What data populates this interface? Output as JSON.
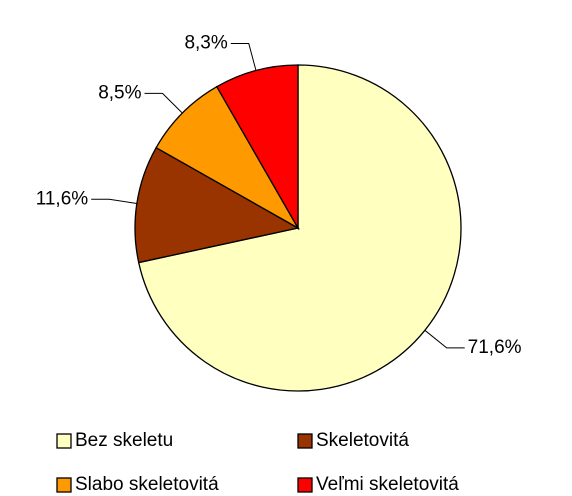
{
  "chart_data": {
    "type": "pie",
    "categories": [
      "Bez skeletu",
      "Skeletovitá",
      "Slabo skeletovitá",
      "Veľmi skeletovitá"
    ],
    "values": [
      71.6,
      11.6,
      8.5,
      8.3
    ],
    "value_labels": [
      "71,6%",
      "11,6%",
      "8,5%",
      "8,3%"
    ],
    "colors": [
      "#FFFFC0",
      "#993300",
      "#FF9900",
      "#FF0000"
    ]
  }
}
